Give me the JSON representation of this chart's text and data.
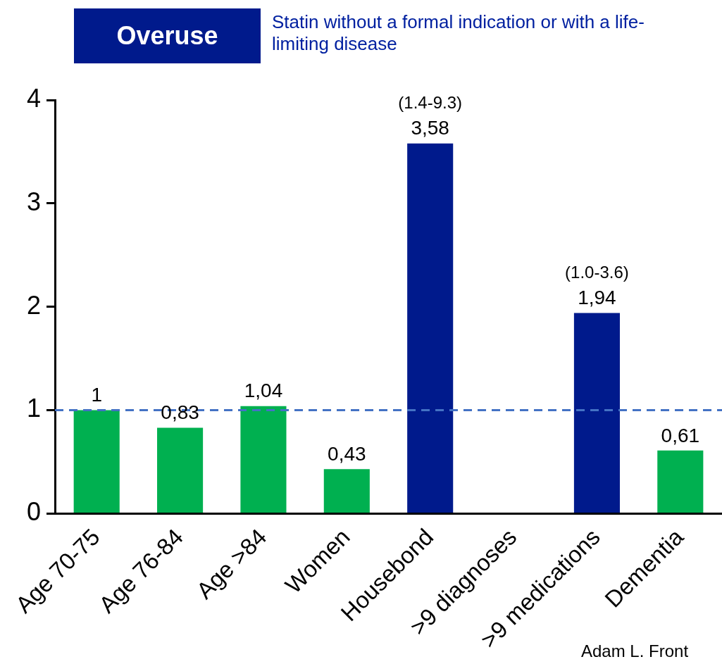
{
  "chart_data": {
    "type": "bar",
    "title": "Overuse",
    "subtitle": "Statin without a formal indication or with a life-limiting disease",
    "categories": [
      "Age 70-75",
      "Age 76-84",
      "Age >84",
      "Women",
      "Housebond",
      ">9 diagnoses",
      ">9 medications",
      "Dementia"
    ],
    "values": [
      1,
      0.83,
      1.04,
      0.43,
      3.58,
      null,
      1.94,
      0.61
    ],
    "colors": [
      "#00b050",
      "#00b050",
      "#00b050",
      "#00b050",
      "#001a8c",
      "#001a8c",
      "#001a8c",
      "#00b050"
    ],
    "value_labels": [
      "1",
      "0,83",
      "1,04",
      "0,43",
      "3,58",
      null,
      "1,94",
      "0,61"
    ],
    "ylim": [
      0,
      4
    ],
    "yticks": [
      0,
      1,
      2,
      3,
      4
    ],
    "grid": false,
    "legend": false,
    "ref_lines": [
      {
        "axis": "y",
        "value": 1,
        "color": "#4472c4",
        "line_style": "dashed"
      }
    ],
    "annotations": [
      {
        "text": "(1.4-9.3)",
        "x": "Housebond",
        "y": 3.58
      },
      {
        "text": "(1.0-3.6)",
        "x": ">9 medications",
        "y": 1.94
      },
      "Adam L. Front"
    ]
  }
}
